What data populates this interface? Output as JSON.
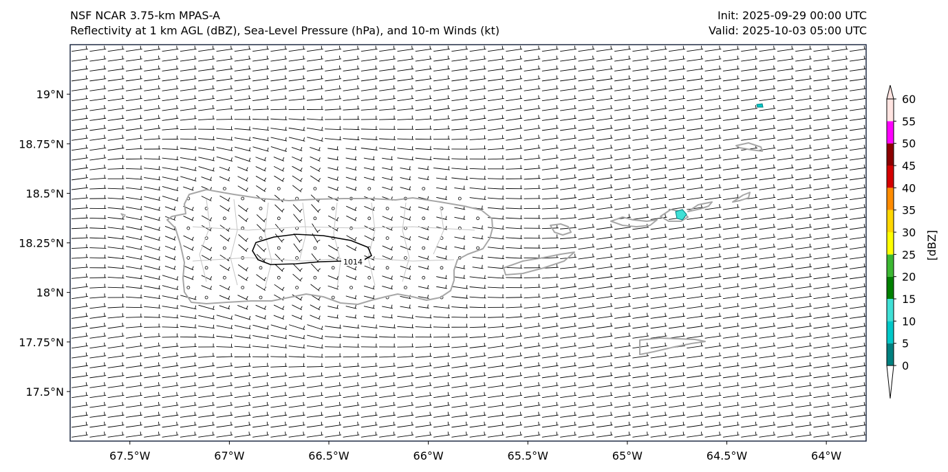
{
  "header": {
    "model": "NSF NCAR 3.75-km MPAS-A",
    "fields": "Reflectivity at 1 km AGL (dBZ), Sea-Level Pressure (hPa), and 10-m Winds (kt)",
    "init": "Init: 2025-09-29 00:00 UTC",
    "valid": "Valid: 2025-10-03 05:00 UTC"
  },
  "map": {
    "lon_range": [
      -67.8,
      -63.8
    ],
    "lat_range": [
      17.25,
      19.25
    ],
    "lon_ticks": [
      {
        "value": -67.5,
        "label": "67.5°W"
      },
      {
        "value": -67.0,
        "label": "67°W"
      },
      {
        "value": -66.5,
        "label": "66.5°W"
      },
      {
        "value": -66.0,
        "label": "66°W"
      },
      {
        "value": -65.5,
        "label": "65.5°W"
      },
      {
        "value": -65.0,
        "label": "65°W"
      },
      {
        "value": -64.5,
        "label": "64.5°W"
      },
      {
        "value": -64.0,
        "label": "64°W"
      }
    ],
    "lat_ticks": [
      {
        "value": 19.0,
        "label": "19°N"
      },
      {
        "value": 18.75,
        "label": "18.75°N"
      },
      {
        "value": 18.5,
        "label": "18.5°N"
      },
      {
        "value": 18.25,
        "label": "18.25°N"
      },
      {
        "value": 18.0,
        "label": "18°N"
      },
      {
        "value": 17.75,
        "label": "17.75°N"
      },
      {
        "value": 17.5,
        "label": "17.5°N"
      }
    ],
    "isobar_label": "1014",
    "colors": {
      "coast": "#a6a6a6",
      "isobar": "#000000",
      "barb": "#000000",
      "frame": "#1f2a44"
    }
  },
  "colorbar": {
    "label": "[dBZ]",
    "bounds": [
      0,
      5,
      10,
      15,
      20,
      25,
      30,
      35,
      40,
      45,
      50,
      55,
      60
    ],
    "tick_labels": [
      "0",
      "5",
      "10",
      "15",
      "20",
      "25",
      "30",
      "35",
      "40",
      "45",
      "50",
      "55",
      "60"
    ],
    "colors": [
      "#00807f",
      "#00c8c8",
      "#3fe0d6",
      "#008000",
      "#3cb832",
      "#ffff00",
      "#ffd700",
      "#ff8c00",
      "#d40000",
      "#8b0000",
      "#ff00ff",
      "#ffe4e1"
    ]
  }
}
